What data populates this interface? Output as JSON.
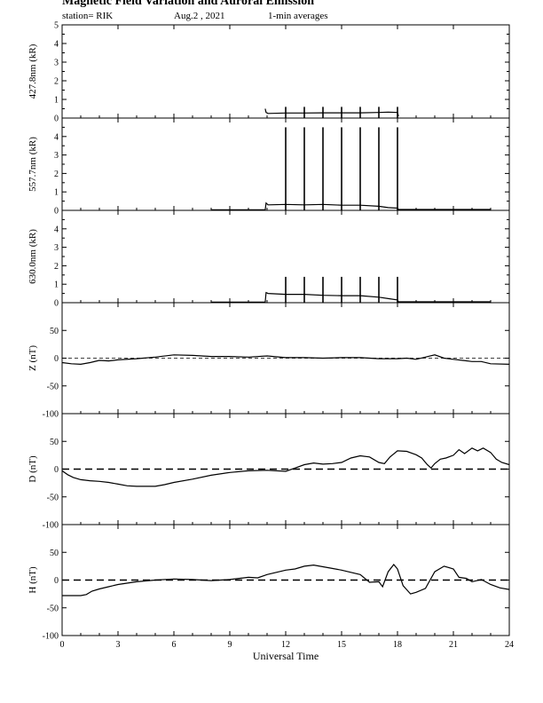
{
  "header": {
    "title": "Magnetic Field Variation and Auroral Emission",
    "station": "station= RIK",
    "date": "Aug.2  , 2021",
    "averages": "1-min averages"
  },
  "chart_data": {
    "type": "line",
    "xlabel": "Universal Time",
    "xlim": [
      0,
      24
    ],
    "xticks": [
      0,
      3,
      6,
      9,
      12,
      15,
      18,
      21,
      24
    ],
    "panels": [
      {
        "key": "p4278",
        "ylabel": "427.8nm (kR)",
        "ylim": [
          0,
          5
        ],
        "yticks": [
          0,
          1,
          2,
          3,
          4,
          5
        ],
        "zero_line": "none",
        "series": [
          {
            "x": [
              10.9,
              10.95,
              11.05,
              12,
              13,
              14,
              15,
              16,
              17,
              17.5,
              18,
              18.05
            ],
            "y": [
              0.5,
              0.3,
              0.25,
              0.27,
              0.27,
              0.28,
              0.28,
              0.28,
              0.3,
              0.32,
              0.3,
              0.1
            ]
          }
        ],
        "spikes": {
          "x": [
            12,
            13,
            14,
            15,
            16,
            17,
            18
          ],
          "y": 0.6
        }
      },
      {
        "key": "p5577",
        "ylabel": "557.7nm (kR)",
        "ylim": [
          0,
          5
        ],
        "yticks": [
          0,
          1,
          2,
          3,
          4
        ],
        "zero_line": "none",
        "series": [
          {
            "x": [
              8,
              10.9,
              10.95,
              11.05,
              12,
              13,
              14,
              15,
              16,
              17,
              17.5,
              18,
              18.05,
              23
            ],
            "y": [
              0.03,
              0.03,
              0.4,
              0.3,
              0.32,
              0.3,
              0.32,
              0.28,
              0.28,
              0.22,
              0.15,
              0.12,
              0.05,
              0.05
            ]
          }
        ],
        "spikes": {
          "x": [
            12,
            13,
            14,
            15,
            16,
            17,
            18
          ],
          "y": 4.5
        }
      },
      {
        "key": "p6300",
        "ylabel": "630.0nm (kR)",
        "ylim": [
          0,
          5
        ],
        "yticks": [
          0,
          1,
          2,
          3,
          4
        ],
        "zero_line": "none",
        "series": [
          {
            "x": [
              8,
              10.9,
              10.95,
              11.05,
              12,
              13,
              14,
              15,
              16,
              17,
              17.5,
              18,
              18.05,
              23
            ],
            "y": [
              0.03,
              0.03,
              0.55,
              0.5,
              0.45,
              0.45,
              0.4,
              0.38,
              0.38,
              0.3,
              0.22,
              0.15,
              0.05,
              0.05
            ]
          }
        ],
        "spikes": {
          "x": [
            12,
            13,
            14,
            15,
            16,
            17,
            18
          ],
          "y": 1.4
        }
      },
      {
        "key": "pz",
        "ylabel": "Z (nT)",
        "ylim": [
          -100,
          100
        ],
        "yticks": [
          -100,
          -50,
          0,
          50
        ],
        "zero_line": "thin",
        "series": [
          {
            "x": [
              0,
              0.5,
              1,
              1.5,
              2,
              2.5,
              3,
              4,
              5,
              6,
              7,
              8,
              9,
              10,
              11,
              12,
              13,
              14,
              15,
              16,
              17,
              18,
              18.5,
              19,
              19.5,
              20,
              20.5,
              21,
              21.5,
              22,
              22.5,
              23,
              24
            ],
            "y": [
              -8,
              -10,
              -11,
              -8,
              -4,
              -5,
              -3,
              -1,
              2,
              6,
              5,
              3,
              3,
              2,
              4,
              1,
              1,
              0,
              1,
              1,
              -1,
              -1,
              0,
              -2,
              2,
              6,
              0,
              -2,
              -4,
              -6,
              -6,
              -10,
              -11
            ]
          }
        ]
      },
      {
        "key": "pd",
        "ylabel": "D (nT)",
        "ylim": [
          -100,
          100
        ],
        "yticks": [
          -100,
          -50,
          0,
          50
        ],
        "zero_line": "dashed",
        "series": [
          {
            "x": [
              0,
              0.3,
              0.6,
              1,
              1.5,
              2,
              2.5,
              3,
              3.5,
              4,
              4.5,
              5,
              5.5,
              6,
              7,
              8,
              9,
              10,
              11,
              12,
              12.5,
              13,
              13.5,
              14,
              14.5,
              15,
              15.5,
              16,
              16.5,
              17,
              17.3,
              17.6,
              18,
              18.5,
              19,
              19.3,
              19.6,
              19.8,
              20,
              20.3,
              20.6,
              21,
              21.3,
              21.6,
              22,
              22.3,
              22.6,
              23,
              23.3,
              23.6,
              24
            ],
            "y": [
              -3,
              -10,
              -15,
              -19,
              -21,
              -22,
              -24,
              -27,
              -30,
              -31,
              -31,
              -31,
              -28,
              -24,
              -18,
              -11,
              -6,
              -3,
              -2,
              -4,
              2,
              8,
              11,
              9,
              10,
              12,
              20,
              24,
              22,
              12,
              10,
              22,
              33,
              32,
              26,
              20,
              8,
              2,
              10,
              18,
              20,
              25,
              35,
              28,
              38,
              33,
              38,
              30,
              18,
              12,
              8
            ]
          }
        ]
      },
      {
        "key": "ph",
        "ylabel": "H (nT)",
        "ylim": [
          -100,
          100
        ],
        "yticks": [
          -100,
          -50,
          0,
          50
        ],
        "zero_line": "dashed",
        "series": [
          {
            "x": [
              0,
              0.5,
              1,
              1.3,
              1.6,
              2,
              2.5,
              3,
              4,
              5,
              6,
              7,
              8,
              9,
              10,
              10.5,
              11,
              12,
              12.5,
              13,
              13.5,
              14,
              14.5,
              15,
              15.5,
              16,
              16.5,
              17,
              17.2,
              17.5,
              17.8,
              18,
              18.3,
              18.7,
              19,
              19.5,
              20,
              20.5,
              21,
              21.3,
              21.7,
              22,
              22.5,
              23,
              23.5,
              24
            ],
            "y": [
              -28,
              -28,
              -28,
              -26,
              -20,
              -16,
              -12,
              -8,
              -3,
              0,
              2,
              1,
              -1,
              1,
              5,
              4,
              10,
              18,
              20,
              25,
              27,
              24,
              21,
              18,
              14,
              10,
              -4,
              -3,
              -12,
              15,
              28,
              20,
              -10,
              -25,
              -22,
              -15,
              15,
              25,
              20,
              5,
              3,
              -3,
              1,
              -8,
              -14,
              -17
            ]
          }
        ]
      }
    ]
  }
}
